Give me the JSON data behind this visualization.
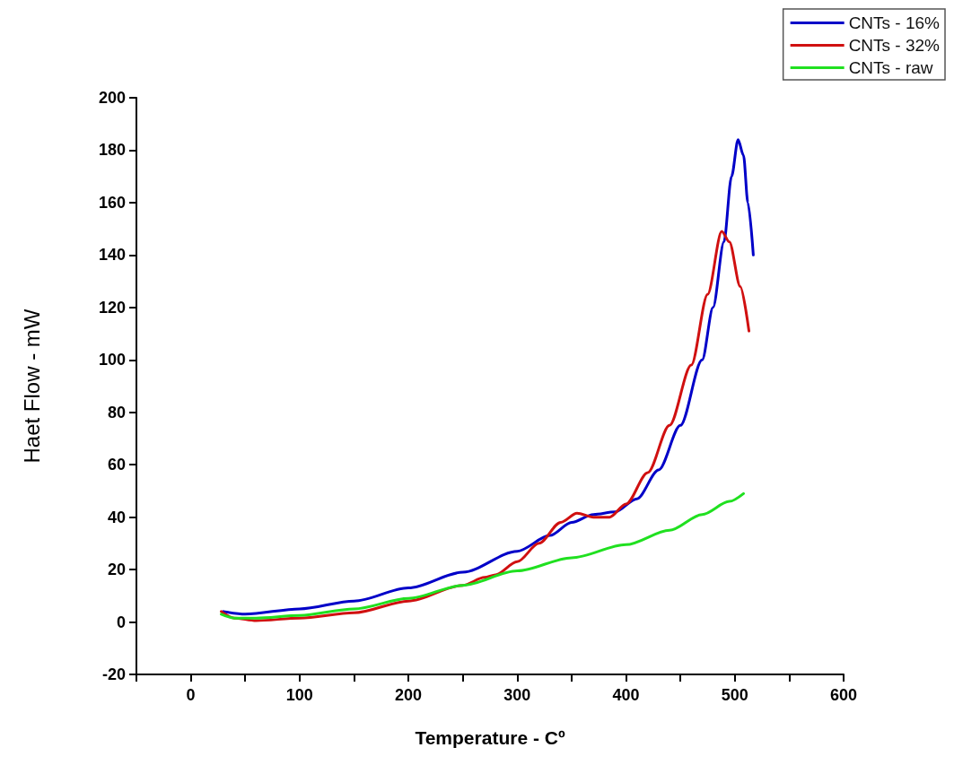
{
  "chart_data": {
    "type": "line",
    "xlabel": "Temperature - Cº",
    "ylabel": "Haet Flow - mW",
    "xlim": [
      -50,
      600
    ],
    "xticks": [
      {
        "value": -50,
        "label": null
      },
      0,
      {
        "value": 50,
        "label": null
      },
      100,
      {
        "value": 150,
        "label": null
      },
      200,
      {
        "value": 250,
        "label": null
      },
      300,
      {
        "value": 350,
        "label": null
      },
      400,
      {
        "value": 450,
        "label": null
      },
      500,
      {
        "value": 550,
        "label": null
      },
      600
    ],
    "ylim": [
      -20,
      200
    ],
    "yticks": [
      -20,
      0,
      20,
      40,
      60,
      80,
      100,
      120,
      140,
      160,
      180,
      200
    ],
    "grid": false,
    "legend": "top right",
    "marker": "none",
    "line_style": "solid",
    "series": [
      {
        "name": "CNTs - 16%",
        "color": "#0000c8",
        "x": [
          30,
          50,
          100,
          150,
          200,
          250,
          300,
          330,
          350,
          370,
          390,
          410,
          430,
          450,
          470,
          480,
          490,
          497,
          503,
          508,
          512,
          517
        ],
        "values": [
          4,
          3,
          5,
          8,
          13,
          19,
          27,
          33,
          38,
          41,
          42,
          47,
          58,
          75,
          100,
          120,
          145,
          170,
          184,
          178,
          160,
          140
        ]
      },
      {
        "name": "CNTs - 32%",
        "color": "#d01010",
        "x": [
          28,
          40,
          60,
          100,
          150,
          200,
          250,
          270,
          280,
          300,
          320,
          340,
          355,
          370,
          385,
          400,
          420,
          440,
          460,
          475,
          488,
          495,
          505,
          513
        ],
        "values": [
          4,
          1.5,
          0.5,
          1.5,
          3.5,
          8,
          14,
          17,
          18,
          23,
          30,
          38,
          41.5,
          40,
          40,
          45,
          57,
          75,
          98,
          125,
          149,
          145,
          128,
          111
        ]
      },
      {
        "name": "CNTs - raw",
        "color": "#20e020",
        "x": [
          28,
          40,
          60,
          100,
          150,
          200,
          250,
          300,
          350,
          400,
          440,
          470,
          495,
          508
        ],
        "values": [
          3,
          1.5,
          1.5,
          2.5,
          5,
          9,
          14,
          19.5,
          24.5,
          29.5,
          35,
          41,
          46,
          49
        ]
      }
    ]
  }
}
